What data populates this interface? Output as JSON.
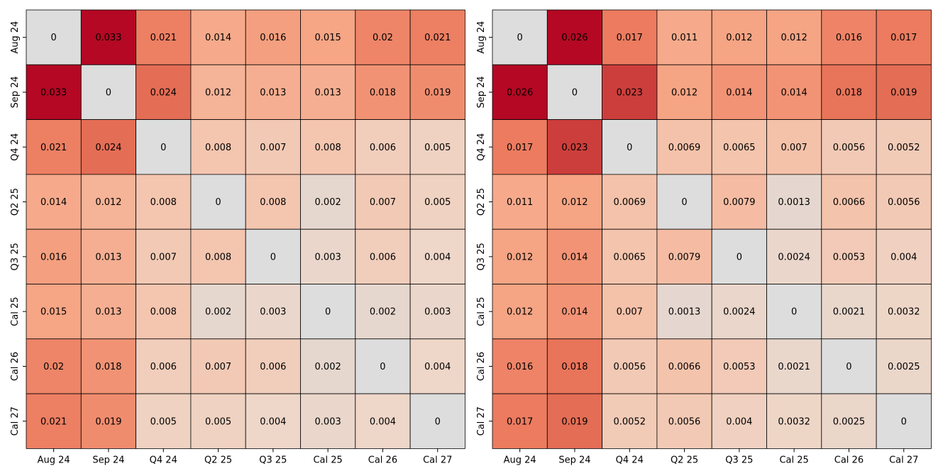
{
  "chart_data": [
    {
      "type": "heatmap",
      "title": "",
      "xlabel": "",
      "ylabel": "",
      "x_labels": [
        "Aug 24",
        "Sep 24",
        "Q4 24",
        "Q2 25",
        "Q3 25",
        "Cal 25",
        "Cal 26",
        "Cal 27"
      ],
      "y_labels": [
        "Aug 24",
        "Sep 24",
        "Q4 24",
        "Q2 25",
        "Q3 25",
        "Cal 25",
        "Cal 26",
        "Cal 27"
      ],
      "values": [
        [
          0,
          0.033,
          0.021,
          0.014,
          0.016,
          0.015,
          0.02,
          0.021
        ],
        [
          0.033,
          0,
          0.024,
          0.012,
          0.013,
          0.013,
          0.018,
          0.019
        ],
        [
          0.021,
          0.024,
          0,
          0.008,
          0.007,
          0.008,
          0.006,
          0.005
        ],
        [
          0.014,
          0.012,
          0.008,
          0,
          0.008,
          0.002,
          0.007,
          0.005
        ],
        [
          0.016,
          0.013,
          0.007,
          0.008,
          0,
          0.003,
          0.006,
          0.004
        ],
        [
          0.015,
          0.013,
          0.008,
          0.002,
          0.003,
          0,
          0.002,
          0.003
        ],
        [
          0.02,
          0.018,
          0.006,
          0.007,
          0.006,
          0.002,
          0,
          0.004
        ],
        [
          0.021,
          0.019,
          0.005,
          0.005,
          0.004,
          0.003,
          0.004,
          0
        ]
      ],
      "color_scale": "white-to-dark-red",
      "diagonal_color": "#dddddd",
      "colorbar": false,
      "grid": true
    },
    {
      "type": "heatmap",
      "title": "",
      "xlabel": "",
      "ylabel": "",
      "x_labels": [
        "Aug 24",
        "Sep 24",
        "Q4 24",
        "Q2 25",
        "Q3 25",
        "Cal 25",
        "Cal 26",
        "Cal 27"
      ],
      "y_labels": [
        "Aug 24",
        "Sep 24",
        "Q4 24",
        "Q2 25",
        "Q3 25",
        "Cal 25",
        "Cal 26",
        "Cal 27"
      ],
      "values": [
        [
          0,
          0.026,
          0.017,
          0.011,
          0.012,
          0.012,
          0.016,
          0.017
        ],
        [
          0.026,
          0,
          0.023,
          0.012,
          0.014,
          0.014,
          0.018,
          0.019
        ],
        [
          0.017,
          0.023,
          0,
          0.0069,
          0.0065,
          0.007,
          0.0056,
          0.0052
        ],
        [
          0.011,
          0.012,
          0.0069,
          0,
          0.0079,
          0.0013,
          0.0066,
          0.0056
        ],
        [
          0.012,
          0.014,
          0.0065,
          0.0079,
          0,
          0.0024,
          0.0053,
          0.004
        ],
        [
          0.012,
          0.014,
          0.007,
          0.0013,
          0.0024,
          0,
          0.0021,
          0.0032
        ],
        [
          0.016,
          0.018,
          0.0056,
          0.0066,
          0.0053,
          0.0021,
          0,
          0.0025
        ],
        [
          0.017,
          0.019,
          0.0052,
          0.0056,
          0.004,
          0.0032,
          0.0025,
          0
        ]
      ],
      "color_scale": "white-to-dark-red",
      "diagonal_color": "#dddddd",
      "colorbar": false,
      "grid": true
    }
  ]
}
